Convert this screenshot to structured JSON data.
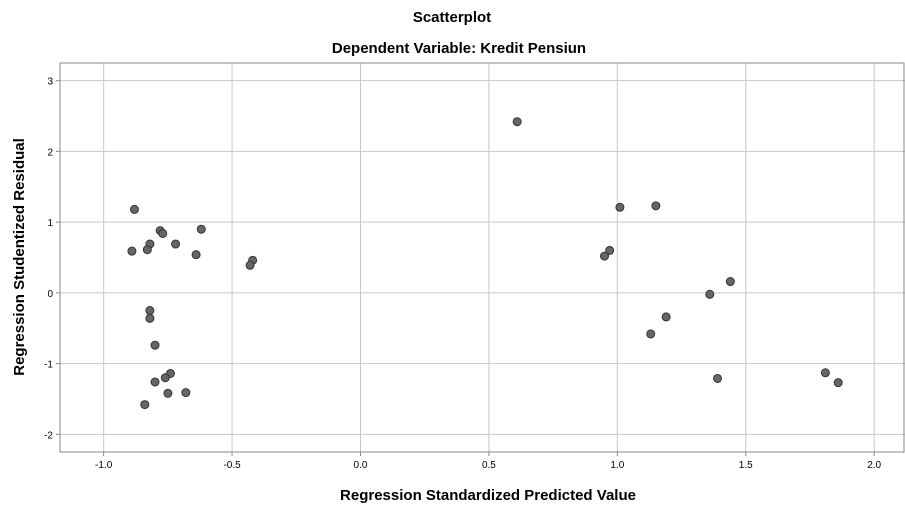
{
  "chart_data": {
    "type": "scatter",
    "title": "Scatterplot",
    "subtitle": "Dependent Variable: Kredit Pensiun",
    "xlabel": "Regression Standardized Predicted Value",
    "ylabel": "Regression Studentized Residual",
    "xlim": [
      -1.17,
      2.12
    ],
    "ylim": [
      -2.25,
      3.25
    ],
    "xticks": [
      -1.0,
      -0.5,
      0.0,
      0.5,
      1.0,
      1.5,
      2.0
    ],
    "xtick_labels": [
      "-1.0",
      "-0.5",
      "0.0",
      "0.5",
      "1.0",
      "1.5",
      "2.0"
    ],
    "yticks": [
      -2,
      -1,
      0,
      1,
      2,
      3
    ],
    "ytick_labels": [
      "-2",
      "-1",
      "0",
      "1",
      "2",
      "3"
    ],
    "grid": true,
    "legend": "none",
    "marker_color": "#666666",
    "points": [
      {
        "x": -0.88,
        "y": 1.18
      },
      {
        "x": -0.89,
        "y": 0.59
      },
      {
        "x": -0.82,
        "y": 0.69
      },
      {
        "x": -0.83,
        "y": 0.61
      },
      {
        "x": -0.78,
        "y": 0.88
      },
      {
        "x": -0.77,
        "y": 0.84
      },
      {
        "x": -0.72,
        "y": 0.69
      },
      {
        "x": -0.62,
        "y": 0.9
      },
      {
        "x": -0.64,
        "y": 0.54
      },
      {
        "x": -0.42,
        "y": 0.46
      },
      {
        "x": -0.43,
        "y": 0.39
      },
      {
        "x": -0.82,
        "y": -0.25
      },
      {
        "x": -0.82,
        "y": -0.36
      },
      {
        "x": -0.8,
        "y": -0.74
      },
      {
        "x": -0.74,
        "y": -1.14
      },
      {
        "x": -0.76,
        "y": -1.2
      },
      {
        "x": -0.8,
        "y": -1.26
      },
      {
        "x": -0.75,
        "y": -1.42
      },
      {
        "x": -0.68,
        "y": -1.41
      },
      {
        "x": -0.84,
        "y": -1.58
      },
      {
        "x": 0.61,
        "y": 2.42
      },
      {
        "x": 1.01,
        "y": 1.21
      },
      {
        "x": 1.15,
        "y": 1.23
      },
      {
        "x": 0.97,
        "y": 0.6
      },
      {
        "x": 0.95,
        "y": 0.52
      },
      {
        "x": 1.44,
        "y": 0.16
      },
      {
        "x": 1.36,
        "y": -0.02
      },
      {
        "x": 1.19,
        "y": -0.34
      },
      {
        "x": 1.13,
        "y": -0.58
      },
      {
        "x": 1.39,
        "y": -1.21
      },
      {
        "x": 1.81,
        "y": -1.13
      },
      {
        "x": 1.86,
        "y": -1.27
      }
    ]
  }
}
